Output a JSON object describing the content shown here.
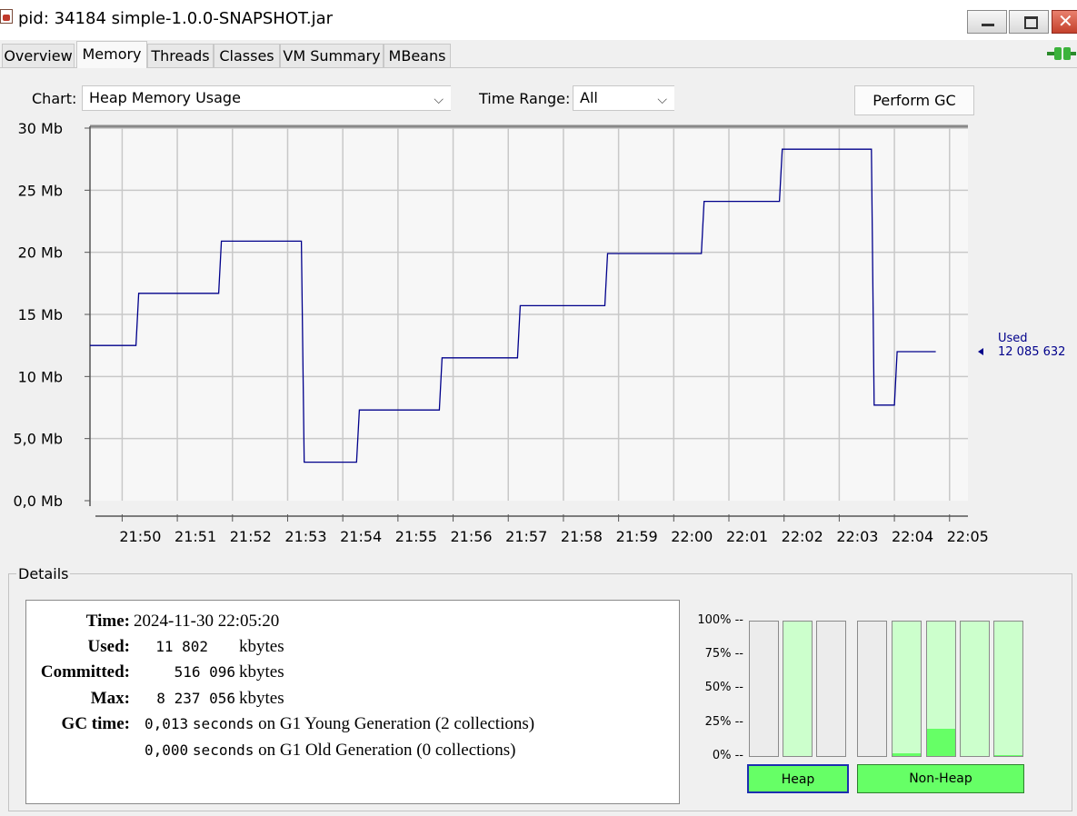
{
  "window": {
    "title": "pid: 34184 simple-1.0.0-SNAPSHOT.jar"
  },
  "tabs": [
    {
      "label": "Overview"
    },
    {
      "label": "Memory",
      "active": true
    },
    {
      "label": "Threads"
    },
    {
      "label": "Classes"
    },
    {
      "label": "VM Summary"
    },
    {
      "label": "MBeans"
    }
  ],
  "controls": {
    "chart_label": "Chart:",
    "chart_value": "Heap Memory Usage",
    "time_range_label": "Time Range:",
    "time_range_value": "All",
    "gc_button": "Perform GC"
  },
  "chart_data": {
    "type": "line",
    "ylabel": "",
    "xlabel": "",
    "y_unit": "Mb",
    "ylim": [
      0,
      30
    ],
    "y_ticks": [
      "0,0 Mb",
      "5,0 Mb",
      "10 Mb",
      "15 Mb",
      "20 Mb",
      "25 Mb",
      "30 Mb"
    ],
    "x_ticks": [
      "21:50",
      "21:51",
      "21:52",
      "21:53",
      "21:54",
      "21:55",
      "21:56",
      "21:57",
      "21:58",
      "21:59",
      "22:00",
      "22:01",
      "22:02",
      "22:03",
      "22:04",
      "22:05"
    ],
    "xlim": [
      "21:49:25",
      "22:05:20"
    ],
    "grid": true,
    "series": [
      {
        "name": "Used",
        "color": "#00008b",
        "current_value_label": "12 085 632",
        "points": [
          [
            "21:49:25",
            12.5
          ],
          [
            "21:50:15",
            12.5
          ],
          [
            "21:50:18",
            16.7
          ],
          [
            "21:51:45",
            16.7
          ],
          [
            "21:51:48",
            20.9
          ],
          [
            "21:53:15",
            20.9
          ],
          [
            "21:53:18",
            3.1
          ],
          [
            "21:54:15",
            3.1
          ],
          [
            "21:54:18",
            7.3
          ],
          [
            "21:55:45",
            7.3
          ],
          [
            "21:55:48",
            11.5
          ],
          [
            "21:57:10",
            11.5
          ],
          [
            "21:57:13",
            15.7
          ],
          [
            "21:58:45",
            15.7
          ],
          [
            "21:58:48",
            19.9
          ],
          [
            "22:00:30",
            19.9
          ],
          [
            "22:00:33",
            24.1
          ],
          [
            "22:01:55",
            24.1
          ],
          [
            "22:01:58",
            28.3
          ],
          [
            "22:03:35",
            28.3
          ],
          [
            "22:03:38",
            7.7
          ],
          [
            "22:04:00",
            7.7
          ],
          [
            "22:04:03",
            12.0
          ],
          [
            "22:04:45",
            12.0
          ]
        ]
      }
    ]
  },
  "details": {
    "legend": "Details",
    "time_label": "Time:",
    "time_value": "2024-11-30 22:05:20",
    "used_label": "Used:",
    "used_value": "11 802",
    "committed_label": "Committed:",
    "committed_value": "516 096",
    "max_label": "Max:",
    "max_value": "8 237 056",
    "unit": "kbytes",
    "gc_label": "GC time:",
    "gc_rows": [
      {
        "seconds": "0,013",
        "seconds_word": "seconds",
        "rest": "on G1 Young Generation (2 collections)"
      },
      {
        "seconds": "0,000",
        "seconds_word": "seconds",
        "rest": "on G1 Old Generation (0 collections)"
      }
    ]
  },
  "pools": {
    "pct_labels": [
      "100% --",
      "75% --",
      "50% --",
      "25% --",
      "0% --"
    ],
    "heap_button": "Heap",
    "nonheap_button": "Non-Heap",
    "bars": [
      {
        "committed": 0.0,
        "used": 0.0
      },
      {
        "committed": 1.0,
        "used": 0.0
      },
      {
        "committed": 0.0,
        "used": 0.0
      },
      {
        "committed": 0.0,
        "used": 0.0
      },
      {
        "committed": 1.0,
        "used": 0.02
      },
      {
        "committed": 1.0,
        "used": 0.2
      },
      {
        "committed": 1.0,
        "used": 0.0
      },
      {
        "committed": 1.0,
        "used": 0.01
      }
    ],
    "fill_color": "#66ff66",
    "committed_color": "#ccffcc"
  }
}
